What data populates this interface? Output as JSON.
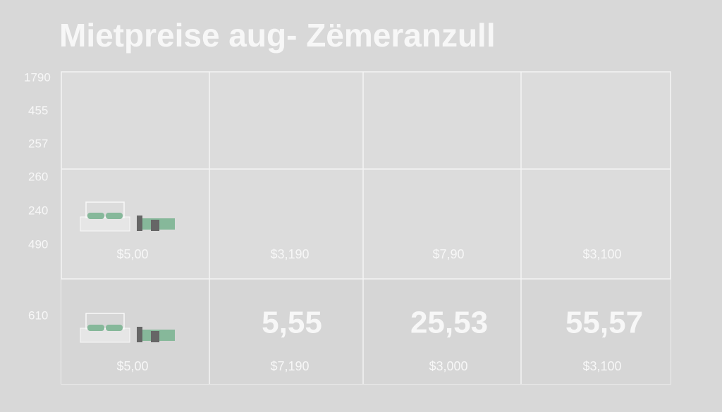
{
  "title": "Mietpreise aug- Zëmeranzull",
  "side_labels": [
    "1790",
    "455",
    "257",
    "260",
    "240",
    "490",
    "610"
  ],
  "table": {
    "middle_prices": [
      "$5,00",
      "$3,190",
      "$7,90",
      "$3,100"
    ],
    "big_numbers": [
      "5,55",
      "25,53",
      "55,57"
    ],
    "bottom_prices": [
      "$5,00",
      "$7,190",
      "$3,000",
      "$3,100"
    ]
  }
}
